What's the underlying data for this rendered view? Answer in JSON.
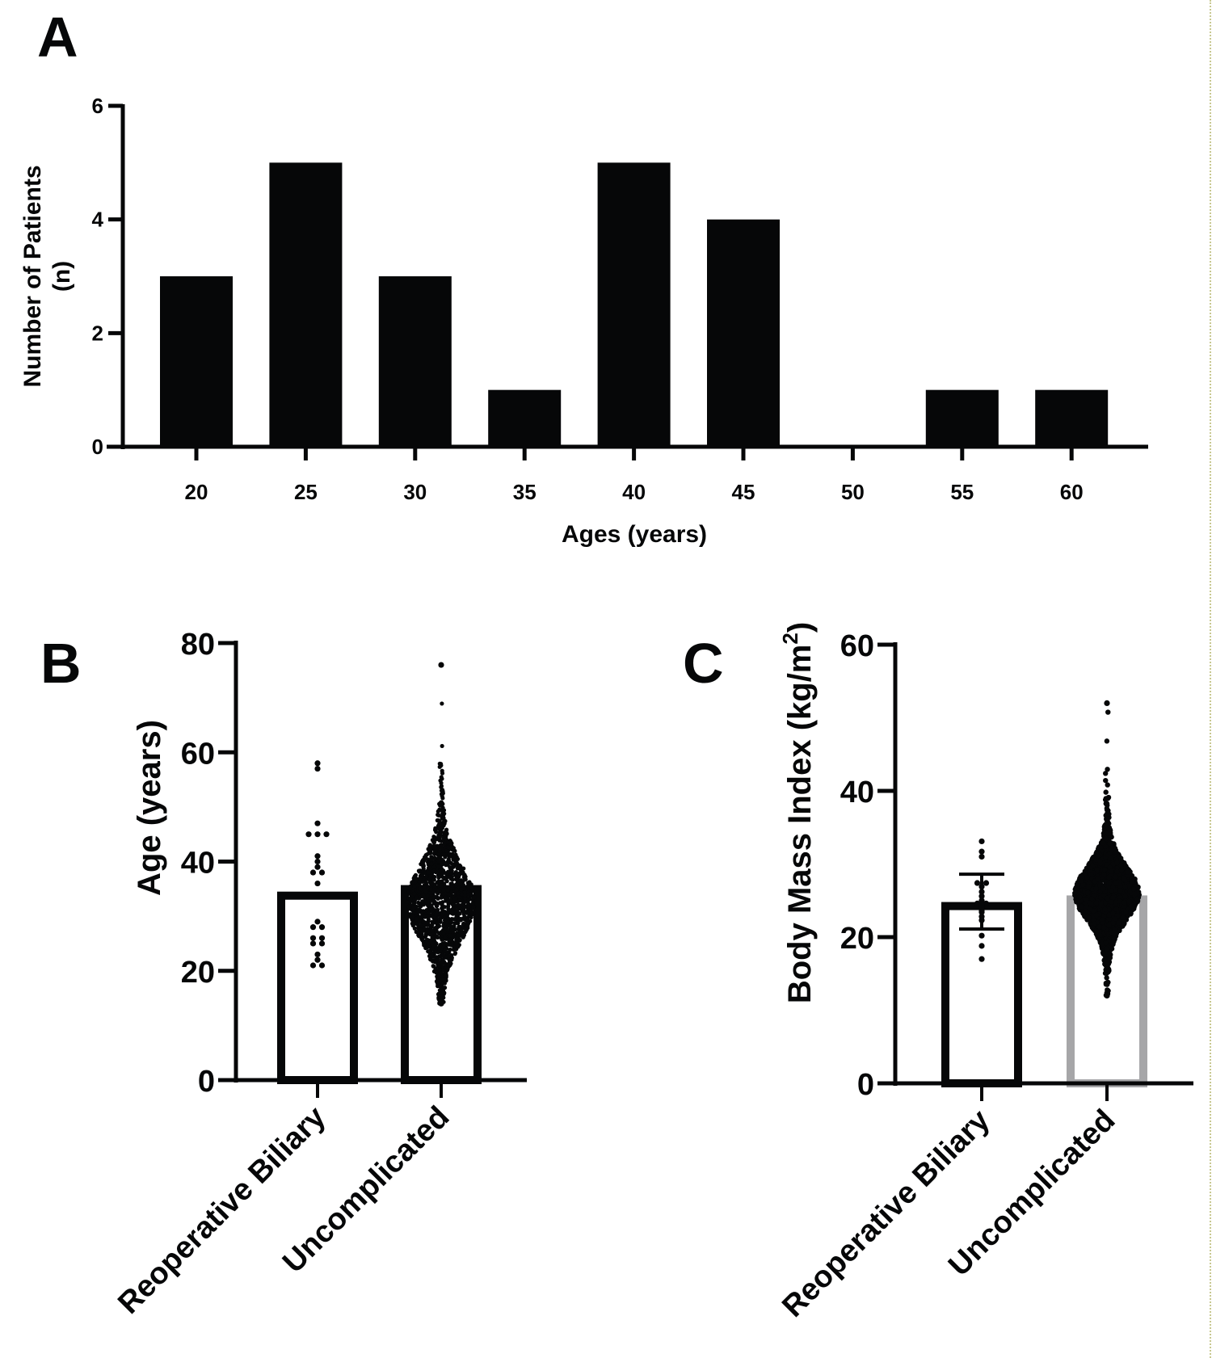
{
  "figure": {
    "border_color": "#c8c890",
    "ink_color": "#060708",
    "gray_color": "#a6a6a8"
  },
  "chart_data": [
    {
      "panel": "A",
      "type": "bar",
      "title": "",
      "xlabel": "Ages (years)",
      "ylabel_line1": "Number of Patients",
      "ylabel_line2": "(n)",
      "categories": [
        "20",
        "25",
        "30",
        "35",
        "40",
        "45",
        "50",
        "55",
        "60"
      ],
      "values": [
        3,
        5,
        3,
        1,
        5,
        4,
        0,
        1,
        1
      ],
      "ylim": [
        0,
        6
      ],
      "yticks": [
        "0",
        "2",
        "4",
        "6"
      ],
      "ytick_values": [
        0,
        2,
        4,
        6
      ],
      "grid": false,
      "bar_color": "#060708"
    },
    {
      "panel": "B",
      "type": "bar",
      "subtype": "bar-with-scatter",
      "xlabel": "",
      "ylabel": "Age (years)",
      "categories": [
        "Reoperative Biliary",
        "Uncomplicated"
      ],
      "ylim": [
        0,
        80
      ],
      "yticks": [
        "0",
        "20",
        "40",
        "60",
        "80"
      ],
      "ytick_values": [
        0,
        20,
        40,
        60,
        80
      ],
      "grid": false,
      "series": [
        {
          "name": "Reoperative Biliary",
          "mean": 34.5,
          "bar_style": "black-outline",
          "points": [
            58,
            57,
            47,
            45,
            45,
            45,
            41,
            40,
            39,
            38,
            38,
            36,
            29,
            28,
            28,
            26,
            26,
            25,
            25,
            23,
            22,
            21,
            21
          ]
        },
        {
          "name": "Uncomplicated",
          "mean": 35.7,
          "bar_style": "black-outline",
          "points_summary": {
            "min": 14,
            "max": 76,
            "n_approx": "dense (>1000)",
            "mode_range": [
              25,
              40
            ]
          }
        }
      ]
    },
    {
      "panel": "C",
      "type": "bar",
      "subtype": "bar-with-scatter",
      "xlabel": "",
      "ylabel": "Body Mass Index (kg/m",
      "ylabel_superscript": "2",
      "ylabel_close": ")",
      "categories": [
        "Reoperative Biliary",
        "Uncomplicated"
      ],
      "ylim": [
        0,
        60
      ],
      "yticks": [
        "0",
        "20",
        "40",
        "60"
      ],
      "ytick_values": [
        0,
        20,
        40,
        60
      ],
      "grid": false,
      "series": [
        {
          "name": "Reoperative Biliary",
          "mean": 24.8,
          "sd_low": 21.1,
          "sd_high": 28.6,
          "bar_style": "black-outline",
          "points": [
            33.1,
            31.7,
            31.0,
            27.4,
            27.4,
            26.9,
            26.2,
            25.6,
            25.0,
            24.6,
            24.6,
            24.3,
            24.0,
            23.6,
            23.4,
            22.8,
            22.3,
            20.2,
            18.8,
            17.0
          ]
        },
        {
          "name": "Uncomplicated",
          "mean": 25.7,
          "bar_style": "gray-outline",
          "points_summary": {
            "min": 12,
            "max": 52,
            "n_approx": "dense (>1000)",
            "mode_range": [
              22,
              30
            ]
          }
        }
      ]
    }
  ]
}
